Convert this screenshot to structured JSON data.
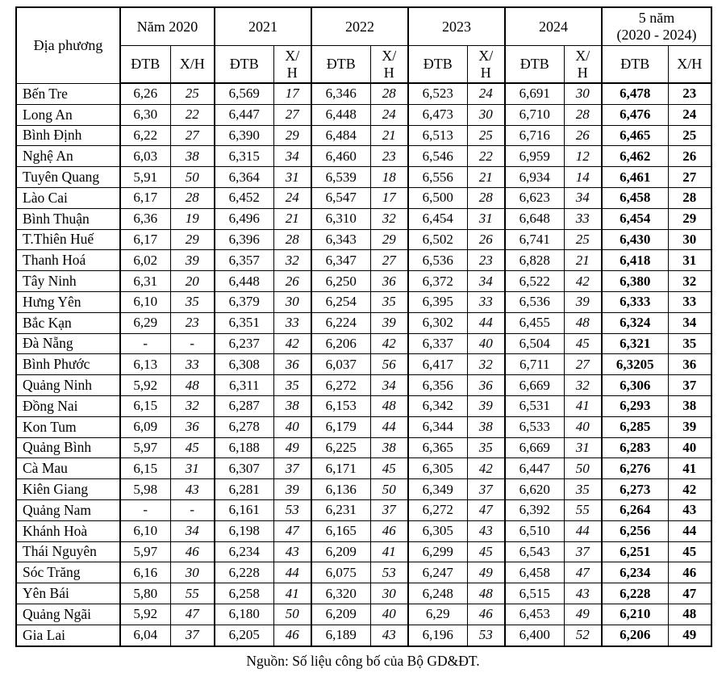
{
  "header": {
    "corner": "Địa phương",
    "groups": [
      {
        "title": "Năm 2020",
        "title2": "",
        "dtb": "ĐTB",
        "xh": "X/H",
        "wrap_xh": false
      },
      {
        "title": "2021",
        "title2": "",
        "dtb": "ĐTB",
        "xh": "X/H",
        "wrap_xh": true
      },
      {
        "title": "2022",
        "title2": "",
        "dtb": "ĐTB",
        "xh": "X/H",
        "wrap_xh": true
      },
      {
        "title": "2023",
        "title2": "",
        "dtb": "ĐTB",
        "xh": "X/H",
        "wrap_xh": true
      },
      {
        "title": "2024",
        "title2": "",
        "dtb": "ĐTB",
        "xh": "X/H",
        "wrap_xh": true
      },
      {
        "title": "5 năm",
        "title2": "(2020 - 2024)",
        "dtb": "ĐTB",
        "xh": "X/H",
        "wrap_xh": false
      }
    ]
  },
  "rows": [
    {
      "name": "Bến Tre",
      "values": [
        "6,26",
        "25",
        "6,569",
        "17",
        "6,346",
        "28",
        "6,523",
        "24",
        "6,691",
        "30",
        "6,478",
        "23"
      ]
    },
    {
      "name": "Long An",
      "values": [
        "6,30",
        "22",
        "6,447",
        "27",
        "6,448",
        "24",
        "6,473",
        "30",
        "6,710",
        "28",
        "6,476",
        "24"
      ]
    },
    {
      "name": "Bình Định",
      "values": [
        "6,22",
        "27",
        "6,390",
        "29",
        "6,484",
        "21",
        "6,513",
        "25",
        "6,716",
        "26",
        "6,465",
        "25"
      ]
    },
    {
      "name": "Nghệ An",
      "values": [
        "6,03",
        "38",
        "6,315",
        "34",
        "6,460",
        "23",
        "6,546",
        "22",
        "6,959",
        "12",
        "6,462",
        "26"
      ]
    },
    {
      "name": "Tuyên Quang",
      "values": [
        "5,91",
        "50",
        "6,364",
        "31",
        "6,539",
        "18",
        "6,556",
        "21",
        "6,934",
        "14",
        "6,461",
        "27"
      ]
    },
    {
      "name": "Lào Cai",
      "values": [
        "6,17",
        "28",
        "6,452",
        "24",
        "6,547",
        "17",
        "6,500",
        "28",
        "6,623",
        "34",
        "6,458",
        "28"
      ]
    },
    {
      "name": "Bình Thuận",
      "values": [
        "6,36",
        "19",
        "6,496",
        "21",
        "6,310",
        "32",
        "6,454",
        "31",
        "6,648",
        "33",
        "6,454",
        "29"
      ]
    },
    {
      "name": "T.Thiên Huế",
      "values": [
        "6,17",
        "29",
        "6,396",
        "28",
        "6,343",
        "29",
        "6,502",
        "26",
        "6,741",
        "25",
        "6,430",
        "30"
      ]
    },
    {
      "name": "Thanh Hoá",
      "values": [
        "6,02",
        "39",
        "6,357",
        "32",
        "6,347",
        "27",
        "6,536",
        "23",
        "6,828",
        "21",
        "6,418",
        "31"
      ]
    },
    {
      "name": "Tây Ninh",
      "values": [
        "6,31",
        "20",
        "6,448",
        "26",
        "6,250",
        "36",
        "6,372",
        "34",
        "6,522",
        "42",
        "6,380",
        "32"
      ]
    },
    {
      "name": "Hưng Yên",
      "values": [
        "6,10",
        "35",
        "6,379",
        "30",
        "6,254",
        "35",
        "6,395",
        "33",
        "6,536",
        "39",
        "6,333",
        "33"
      ]
    },
    {
      "name": "Bắc Kạn",
      "values": [
        "6,29",
        "23",
        "6,351",
        "33",
        "6,224",
        "39",
        "6,302",
        "44",
        "6,455",
        "48",
        "6,324",
        "34"
      ]
    },
    {
      "name": "Đà Nẵng",
      "values": [
        "-",
        "-",
        "6,237",
        "42",
        "6,206",
        "42",
        "6,337",
        "40",
        "6,504",
        "45",
        "6,321",
        "35"
      ]
    },
    {
      "name": "Bình Phước",
      "values": [
        "6,13",
        "33",
        "6,308",
        "36",
        "6,037",
        "56",
        "6,417",
        "32",
        "6,711",
        "27",
        "6,3205",
        "36"
      ]
    },
    {
      "name": "Quảng Ninh",
      "values": [
        "5,92",
        "48",
        "6,311",
        "35",
        "6,272",
        "34",
        "6,356",
        "36",
        "6,669",
        "32",
        "6,306",
        "37"
      ]
    },
    {
      "name": "Đồng Nai",
      "values": [
        "6,15",
        "32",
        "6,287",
        "38",
        "6,153",
        "48",
        "6,342",
        "39",
        "6,531",
        "41",
        "6,293",
        "38"
      ]
    },
    {
      "name": "Kon Tum",
      "values": [
        "6,09",
        "36",
        "6,278",
        "40",
        "6,179",
        "44",
        "6,344",
        "38",
        "6,533",
        "40",
        "6,285",
        "39"
      ]
    },
    {
      "name": "Quảng Bình",
      "values": [
        "5,97",
        "45",
        "6,188",
        "49",
        "6,225",
        "38",
        "6,365",
        "35",
        "6,669",
        "31",
        "6,283",
        "40"
      ]
    },
    {
      "name": "Cà Mau",
      "values": [
        "6,15",
        "31",
        "6,307",
        "37",
        "6,171",
        "45",
        "6,305",
        "42",
        "6,447",
        "50",
        "6,276",
        "41"
      ]
    },
    {
      "name": "Kiên Giang",
      "values": [
        "5,98",
        "43",
        "6,281",
        "39",
        "6,136",
        "50",
        "6,349",
        "37",
        "6,620",
        "35",
        "6,273",
        "42"
      ]
    },
    {
      "name": "Quảng Nam",
      "values": [
        "-",
        "-",
        "6,161",
        "53",
        "6,231",
        "37",
        "6,272",
        "47",
        "6,392",
        "55",
        "6,264",
        "43"
      ]
    },
    {
      "name": "Khánh Hoà",
      "values": [
        "6,10",
        "34",
        "6,198",
        "47",
        "6,165",
        "46",
        "6,305",
        "43",
        "6,510",
        "44",
        "6,256",
        "44"
      ]
    },
    {
      "name": "Thái Nguyên",
      "values": [
        "5,97",
        "46",
        "6,234",
        "43",
        "6,209",
        "41",
        "6,299",
        "45",
        "6,543",
        "37",
        "6,251",
        "45"
      ]
    },
    {
      "name": "Sóc Trăng",
      "values": [
        "6,16",
        "30",
        "6,228",
        "44",
        "6,075",
        "53",
        "6,247",
        "49",
        "6,458",
        "47",
        "6,234",
        "46"
      ]
    },
    {
      "name": "Yên Bái",
      "values": [
        "5,80",
        "55",
        "6,258",
        "41",
        "6,320",
        "30",
        "6,248",
        "48",
        "6,515",
        "43",
        "6,228",
        "47"
      ]
    },
    {
      "name": "Quảng Ngãi",
      "values": [
        "5,92",
        "47",
        "6,180",
        "50",
        "6,209",
        "40",
        "6,29",
        "46",
        "6,453",
        "49",
        "6,210",
        "48"
      ]
    },
    {
      "name": "Gia Lai",
      "values": [
        "6,04",
        "37",
        "6,205",
        "46",
        "6,189",
        "43",
        "6,196",
        "53",
        "6,400",
        "52",
        "6,206",
        "49"
      ]
    }
  ],
  "footer": {
    "source": "Nguồn: Số liệu công bố của Bộ GD&ĐT."
  }
}
